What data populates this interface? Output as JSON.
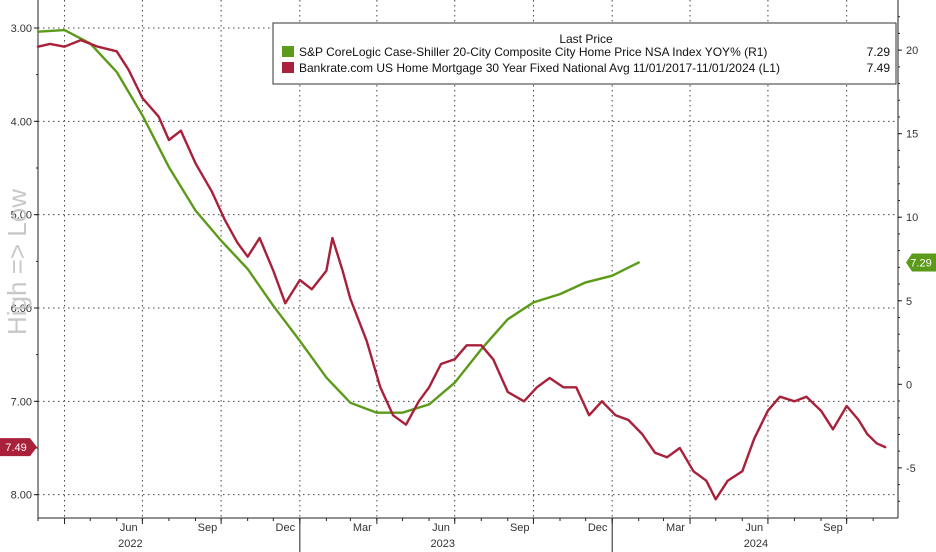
{
  "chart_data": {
    "type": "line",
    "left_axis": {
      "label": "High => Low",
      "inverted": true,
      "range": [
        8.25,
        2.7
      ],
      "ticks": [
        "3.00",
        "4.00",
        "5.00",
        "6.00",
        "7.00",
        "8.00"
      ]
    },
    "right_axis": {
      "range": [
        -8,
        23
      ],
      "ticks": [
        "20",
        "15",
        "10",
        "5",
        "0",
        "-5"
      ]
    },
    "x_axis": {
      "range": [
        "2022-03-01",
        "2024-11-30"
      ],
      "month_ticks": [
        "Jun",
        "Sep",
        "Dec",
        "Mar",
        "Jun",
        "Sep",
        "Dec",
        "Mar",
        "Jun",
        "Sep"
      ],
      "year_labels": [
        "2022",
        "2023",
        "2024"
      ]
    },
    "legend": {
      "header": "Last Price",
      "placement": "top-right",
      "items": [
        {
          "name": "S&P CoreLogic Case-Shiller 20-City Composite City Home Price NSA Index YOY%  (R1)",
          "value": "7.29"
        },
        {
          "name": "Bankrate.com US Home Mortgage 30 Year Fixed National Avg 11/01/2017-11/01/2024  (L1)",
          "value": "7.49"
        }
      ]
    },
    "badges": {
      "left": "7.49",
      "right": "7.29"
    },
    "colors": {
      "home_price": "#5c9a1a",
      "mortgage": "#a8203a",
      "grid": "#444444"
    },
    "series": [
      {
        "name": "S&P CoreLogic Case-Shiller 20-City Composite City Home Price NSA Index YOY%",
        "axis": "right",
        "color": "#5c9a1a",
        "points": [
          [
            "2022-03-01",
            21.1
          ],
          [
            "2022-04-01",
            21.2
          ],
          [
            "2022-05-01",
            20.4
          ],
          [
            "2022-06-01",
            18.7
          ],
          [
            "2022-07-01",
            16.1
          ],
          [
            "2022-08-01",
            13.0
          ],
          [
            "2022-09-01",
            10.4
          ],
          [
            "2022-10-01",
            8.6
          ],
          [
            "2022-11-01",
            6.9
          ],
          [
            "2022-12-01",
            4.7
          ],
          [
            "2023-01-01",
            2.6
          ],
          [
            "2023-02-01",
            0.4
          ],
          [
            "2023-03-01",
            -1.1
          ],
          [
            "2023-04-01",
            -1.7
          ],
          [
            "2023-05-01",
            -1.7
          ],
          [
            "2023-06-01",
            -1.2
          ],
          [
            "2023-07-01",
            0.1
          ],
          [
            "2023-08-01",
            2.1
          ],
          [
            "2023-09-01",
            3.9
          ],
          [
            "2023-10-01",
            4.9
          ],
          [
            "2023-11-01",
            5.4
          ],
          [
            "2023-12-01",
            6.1
          ],
          [
            "2024-01-01",
            6.5
          ],
          [
            "2024-02-01",
            7.29
          ]
        ]
      },
      {
        "name": "Bankrate.com US Home Mortgage 30 Year Fixed National Avg",
        "axis": "left",
        "color": "#a8203a",
        "points": [
          [
            "2022-03-01",
            3.2
          ],
          [
            "2022-03-15",
            3.17
          ],
          [
            "2022-04-01",
            3.2
          ],
          [
            "2022-04-20",
            3.13
          ],
          [
            "2022-05-10",
            3.2
          ],
          [
            "2022-06-01",
            3.25
          ],
          [
            "2022-06-15",
            3.45
          ],
          [
            "2022-07-01",
            3.75
          ],
          [
            "2022-07-20",
            3.95
          ],
          [
            "2022-08-01",
            4.2
          ],
          [
            "2022-08-15",
            4.1
          ],
          [
            "2022-09-01",
            4.45
          ],
          [
            "2022-09-20",
            4.75
          ],
          [
            "2022-10-05",
            5.05
          ],
          [
            "2022-10-20",
            5.3
          ],
          [
            "2022-11-01",
            5.45
          ],
          [
            "2022-11-15",
            5.25
          ],
          [
            "2022-12-01",
            5.6
          ],
          [
            "2022-12-15",
            5.95
          ],
          [
            "2023-01-01",
            5.7
          ],
          [
            "2023-01-15",
            5.8
          ],
          [
            "2023-02-01",
            5.6
          ],
          [
            "2023-02-08",
            5.25
          ],
          [
            "2023-02-20",
            5.6
          ],
          [
            "2023-03-01",
            5.9
          ],
          [
            "2023-03-20",
            6.35
          ],
          [
            "2023-04-05",
            6.85
          ],
          [
            "2023-04-20",
            7.15
          ],
          [
            "2023-05-05",
            7.25
          ],
          [
            "2023-05-20",
            7.0
          ],
          [
            "2023-06-01",
            6.85
          ],
          [
            "2023-06-15",
            6.6
          ],
          [
            "2023-07-01",
            6.55
          ],
          [
            "2023-07-15",
            6.4
          ],
          [
            "2023-08-01",
            6.4
          ],
          [
            "2023-08-15",
            6.55
          ],
          [
            "2023-09-01",
            6.9
          ],
          [
            "2023-09-20",
            7.0
          ],
          [
            "2023-10-05",
            6.85
          ],
          [
            "2023-10-20",
            6.75
          ],
          [
            "2023-11-05",
            6.85
          ],
          [
            "2023-11-20",
            6.85
          ],
          [
            "2023-12-05",
            7.15
          ],
          [
            "2023-12-20",
            7.0
          ],
          [
            "2024-01-05",
            7.15
          ],
          [
            "2024-01-20",
            7.2
          ],
          [
            "2024-02-05",
            7.35
          ],
          [
            "2024-02-20",
            7.55
          ],
          [
            "2024-03-05",
            7.6
          ],
          [
            "2024-03-20",
            7.5
          ],
          [
            "2024-04-05",
            7.75
          ],
          [
            "2024-04-20",
            7.85
          ],
          [
            "2024-05-01",
            8.05
          ],
          [
            "2024-05-15",
            7.85
          ],
          [
            "2024-06-01",
            7.75
          ],
          [
            "2024-06-15",
            7.4
          ],
          [
            "2024-07-01",
            7.1
          ],
          [
            "2024-07-15",
            6.95
          ],
          [
            "2024-08-01",
            7.0
          ],
          [
            "2024-08-15",
            6.95
          ],
          [
            "2024-09-01",
            7.1
          ],
          [
            "2024-09-15",
            7.3
          ],
          [
            "2024-10-01",
            7.05
          ],
          [
            "2024-10-15",
            7.2
          ],
          [
            "2024-10-25",
            7.35
          ],
          [
            "2024-11-05",
            7.45
          ],
          [
            "2024-11-15",
            7.49
          ]
        ]
      }
    ]
  }
}
